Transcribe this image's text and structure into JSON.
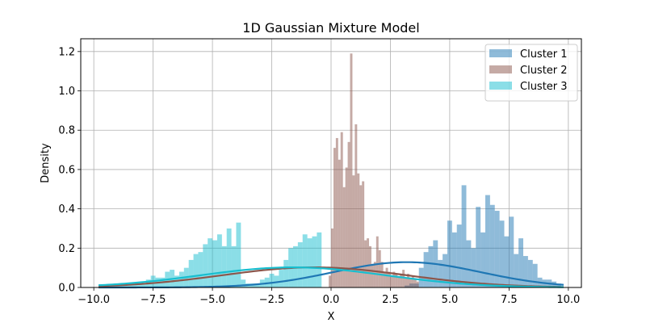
{
  "chart_data": {
    "type": "histogram",
    "title": "1D Gaussian Mixture Model",
    "xlabel": "X",
    "ylabel": "Density",
    "xlim": [
      -10.55,
      10.55
    ],
    "ylim": [
      0,
      1.265
    ],
    "xticks": [
      -10.0,
      -7.5,
      -5.0,
      -2.5,
      0.0,
      2.5,
      5.0,
      7.5,
      10.0
    ],
    "xtick_labels": [
      "−10.0",
      "−7.5",
      "−5.0",
      "−2.5",
      "0.0",
      "2.5",
      "5.0",
      "7.5",
      "10.0"
    ],
    "yticks": [
      0.0,
      0.2,
      0.4,
      0.6,
      0.8,
      1.0,
      1.2
    ],
    "ytick_labels": [
      "0.0",
      "0.2",
      "0.4",
      "0.6",
      "0.8",
      "1.0",
      "1.2"
    ],
    "grid": true,
    "legend_position": "upper right",
    "series": [
      {
        "name": "Cluster 1",
        "color": "#1f77b4",
        "fill_alpha": 0.5,
        "bin_start": 3.1,
        "bin_width": 0.2,
        "heights": [
          0.01,
          0.02,
          0.02,
          0.1,
          0.18,
          0.21,
          0.24,
          0.14,
          0.17,
          0.34,
          0.28,
          0.32,
          0.52,
          0.24,
          0.2,
          0.41,
          0.28,
          0.47,
          0.42,
          0.39,
          0.34,
          0.26,
          0.36,
          0.17,
          0.25,
          0.16,
          0.14,
          0.12,
          0.05,
          0.04,
          0.04,
          0.03,
          0.02
        ],
        "gaussian": {
          "mean": 3.2,
          "std": 3.1,
          "weight": 1.0
        }
      },
      {
        "name": "Cluster 2",
        "color": "#8c564b",
        "fill_alpha": 0.5,
        "bin_start": -0.1,
        "bin_width": 0.1,
        "heights": [
          0.06,
          0.3,
          0.71,
          0.76,
          0.65,
          0.79,
          0.51,
          0.61,
          0.74,
          1.19,
          0.57,
          0.83,
          0.58,
          0.52,
          0.54,
          0.24,
          0.25,
          0.21,
          0.12,
          0.13,
          0.26,
          0.19,
          0.13,
          0.08,
          0.1,
          0.08,
          0.06,
          0.08,
          0.07,
          0.05,
          0.07,
          0.09,
          0.05,
          0.07,
          0.05,
          0.06,
          0.04,
          0.03
        ],
        "gaussian": {
          "mean": -0.7,
          "std": 3.9,
          "weight": 1.0
        }
      },
      {
        "name": "Cluster 3",
        "color": "#17becf",
        "fill_alpha": 0.5,
        "bin_start": -9.8,
        "bin_width": 0.2,
        "heights": [
          0.01,
          0.01,
          0.01,
          0.01,
          0.01,
          0.01,
          0.01,
          0.02,
          0.02,
          0.02,
          0.04,
          0.06,
          0.05,
          0.05,
          0.08,
          0.09,
          0.06,
          0.08,
          0.1,
          0.14,
          0.17,
          0.18,
          0.22,
          0.25,
          0.24,
          0.27,
          0.21,
          0.3,
          0.21,
          0.33,
          0.04,
          0.02,
          0.02,
          0.02,
          0.04,
          0.05,
          0.07,
          0.06,
          0.09,
          0.14,
          0.2,
          0.21,
          0.23,
          0.27,
          0.25,
          0.26,
          0.28
        ],
        "gaussian": {
          "mean": -1.6,
          "std": 3.9,
          "weight": 1.0
        }
      }
    ]
  }
}
